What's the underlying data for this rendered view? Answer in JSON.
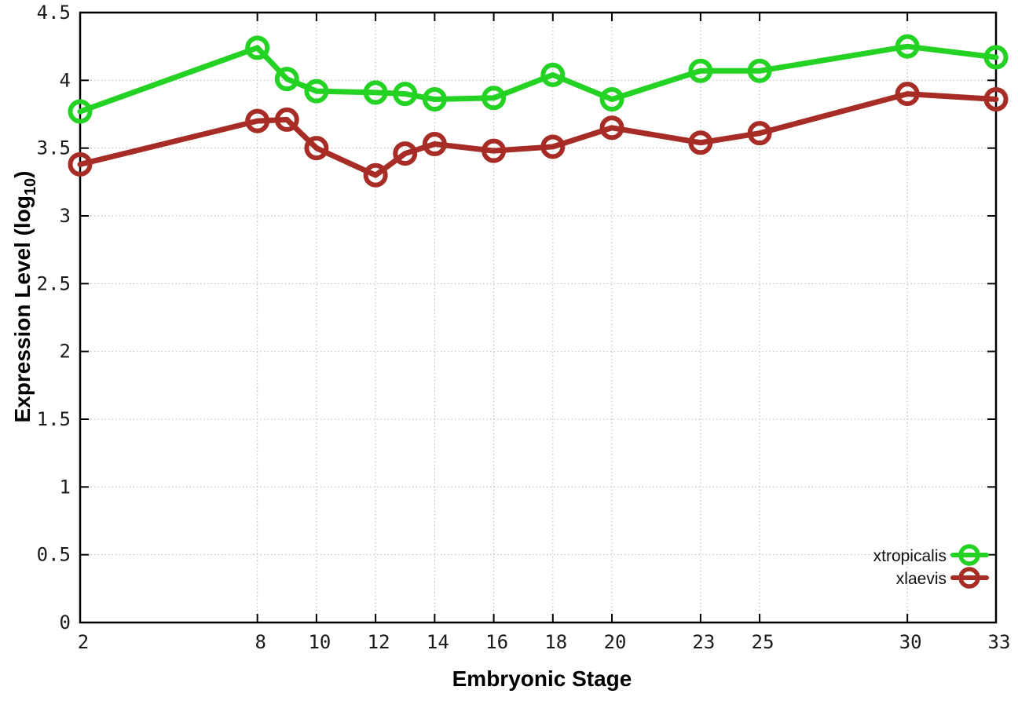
{
  "chart_data": {
    "type": "line",
    "title": "",
    "xlabel": "Embryonic Stage",
    "ylabel": "Expression Level (log10)",
    "ylabel_parts": [
      "Expression Level (log",
      "10",
      ")"
    ],
    "x": [
      2,
      8,
      9,
      10,
      12,
      13,
      14,
      16,
      18,
      20,
      23,
      25,
      30,
      33
    ],
    "xtick_values": [
      2,
      8,
      10,
      12,
      14,
      16,
      18,
      20,
      23,
      25,
      30,
      33
    ],
    "xtick_labels": [
      "2",
      "8",
      "10",
      "12",
      "14",
      "16",
      "18",
      "20",
      "23",
      "25",
      "30",
      "33"
    ],
    "ytick_values": [
      0,
      0.5,
      1,
      1.5,
      2,
      2.5,
      3,
      3.5,
      4,
      4.5
    ],
    "ytick_labels": [
      "0",
      "0.5",
      "1",
      "1.5",
      "2",
      "2.5",
      "3",
      "3.5",
      "4",
      "4.5"
    ],
    "xlim": [
      2,
      33
    ],
    "ylim": [
      0,
      4.5
    ],
    "grid": true,
    "legend_position": "inside-bottom-right",
    "series": [
      {
        "name": "xtropicalis",
        "color": "#23d223",
        "marker": "open-circle",
        "values": [
          3.77,
          4.24,
          4.01,
          3.92,
          3.91,
          3.9,
          3.86,
          3.87,
          4.04,
          3.86,
          4.07,
          4.07,
          4.25,
          4.17
        ]
      },
      {
        "name": "xlaevis",
        "color": "#a62c25",
        "marker": "open-circle",
        "values": [
          3.38,
          3.7,
          3.71,
          3.5,
          3.3,
          3.46,
          3.53,
          3.48,
          3.51,
          3.65,
          3.54,
          3.61,
          3.9,
          3.86
        ]
      }
    ]
  },
  "style": {
    "grid_color": "#b8b8b8",
    "axis_color": "#000000",
    "background": "#ffffff"
  }
}
